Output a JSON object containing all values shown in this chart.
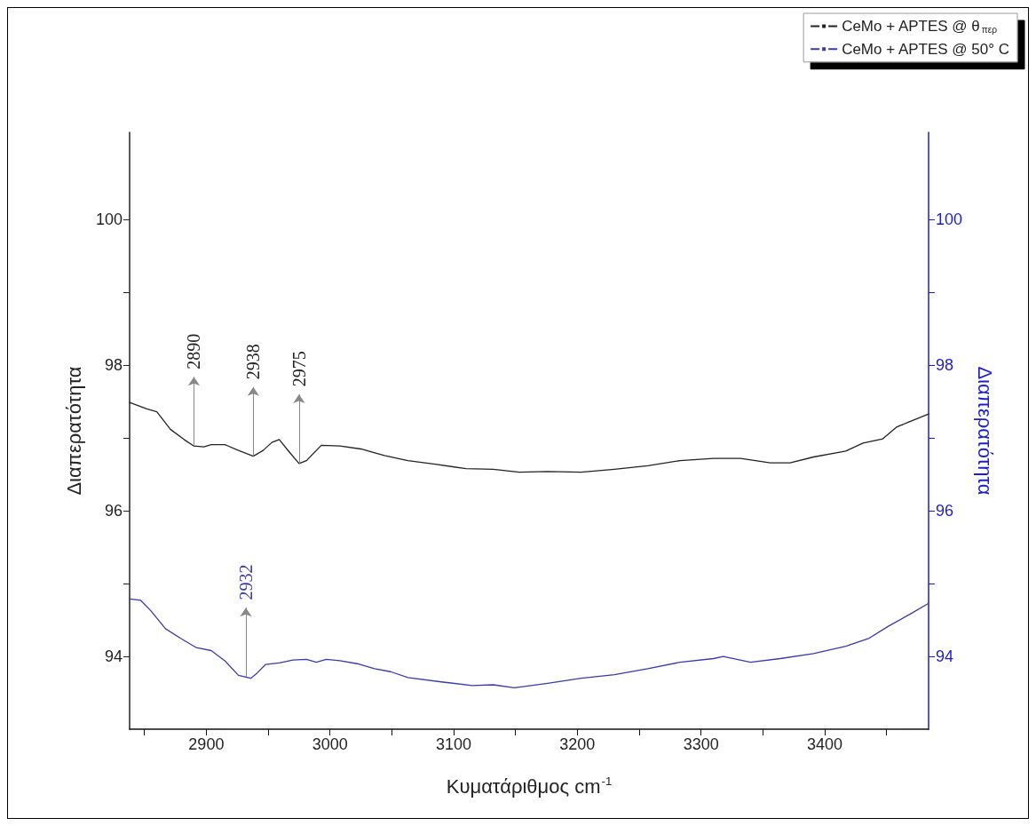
{
  "chart_data": {
    "type": "line",
    "xlabel": "Κυματάριθμος cm$^{-1}$",
    "ylabel": "Διαπερατότητα",
    "y2label": "Διαπερατότητα",
    "xlim": [
      2838,
      3484
    ],
    "xticks": [
      {
        "value": 2850,
        "label": null
      },
      2900,
      {
        "value": 2950,
        "label": null
      },
      3000,
      {
        "value": 3050,
        "label": null
      },
      3100,
      {
        "value": 3150,
        "label": null
      },
      3200,
      {
        "value": 3250,
        "label": null
      },
      3300,
      {
        "value": 3350,
        "label": null
      },
      3400,
      {
        "value": 3450,
        "label": null
      }
    ],
    "ylim": [
      93,
      101.2
    ],
    "yticks": [
      94,
      {
        "value": 95,
        "label": null
      },
      96,
      {
        "value": 97,
        "label": null
      },
      98,
      {
        "value": 99,
        "label": null
      },
      100
    ],
    "y2lim": [
      93,
      101.2
    ],
    "y2ticks": [
      94,
      {
        "value": 95,
        "label": null
      },
      96,
      {
        "value": 97,
        "label": null
      },
      98,
      {
        "value": 99,
        "label": null
      },
      100
    ],
    "legend": "top right",
    "marker": "none",
    "line_style": "solid",
    "series": [
      {
        "name": "CeMo + APTES @ θ$_{περ}$",
        "color": "#222222",
        "x": [
          2838,
          2852,
          2860,
          2871,
          2882,
          2890,
          2898,
          2904,
          2915,
          2926,
          2938,
          2946,
          2953,
          2959,
          2967,
          2975,
          2981,
          2993,
          3008,
          3025,
          3044,
          3063,
          3085,
          3110,
          3132,
          3153,
          3176,
          3203,
          3230,
          3257,
          3283,
          3310,
          3332,
          3356,
          3372,
          3391,
          3417,
          3431,
          3447,
          3458,
          3468,
          3484
        ],
        "values": [
          97.49,
          97.4,
          97.36,
          97.12,
          96.98,
          96.89,
          96.88,
          96.91,
          96.91,
          96.83,
          96.75,
          96.83,
          96.94,
          96.98,
          96.81,
          96.65,
          96.69,
          96.9,
          96.89,
          96.85,
          96.76,
          96.69,
          96.64,
          96.58,
          96.57,
          96.53,
          96.54,
          96.53,
          96.57,
          96.62,
          96.69,
          96.72,
          96.72,
          96.66,
          96.66,
          96.74,
          96.82,
          96.93,
          96.99,
          97.15,
          97.22,
          97.33
        ]
      },
      {
        "name": "CeMo + APTES @ 50° C",
        "color": "#3a3aa8",
        "axis": "y2",
        "x": [
          2838,
          2847,
          2855,
          2867,
          2879,
          2892,
          2904,
          2915,
          2926,
          2936,
          2941,
          2948,
          2959,
          2970,
          2981,
          2989,
          2997,
          3008,
          3022,
          3036,
          3049,
          3063,
          3090,
          3115,
          3132,
          3149,
          3176,
          3203,
          3230,
          3257,
          3283,
          3310,
          3318,
          3340,
          3364,
          3391,
          3417,
          3436,
          3452,
          3471,
          3484
        ],
        "values": [
          94.79,
          94.77,
          94.63,
          94.38,
          94.25,
          94.12,
          94.08,
          93.94,
          93.74,
          93.7,
          93.77,
          93.89,
          93.91,
          93.95,
          93.96,
          93.92,
          93.96,
          93.94,
          93.9,
          93.83,
          93.79,
          93.71,
          93.65,
          93.6,
          93.61,
          93.57,
          93.63,
          93.7,
          93.75,
          93.83,
          93.92,
          93.97,
          94.0,
          93.92,
          93.97,
          94.04,
          94.14,
          94.25,
          94.42,
          94.6,
          94.73
        ]
      }
    ],
    "annotations": [
      {
        "text": "2890",
        "x": 2890,
        "y": 96.89
      },
      {
        "text": "2938",
        "x": 2938,
        "y": 96.75
      },
      {
        "text": "2975",
        "x": 2975,
        "y": 96.65
      },
      {
        "text": "2932",
        "x": 2932,
        "y": 93.72
      }
    ]
  }
}
